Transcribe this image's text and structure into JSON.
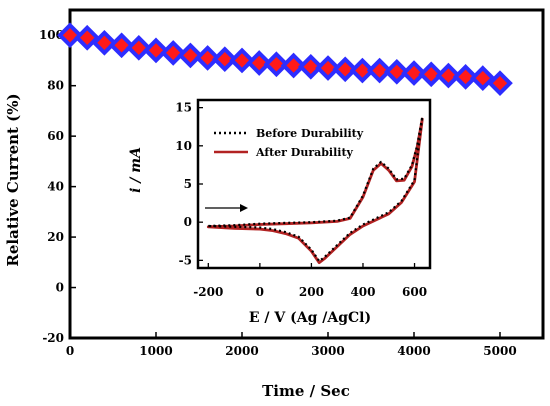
{
  "chart_data": [
    {
      "type": "scatter",
      "title": "",
      "xlabel": "Time / Sec",
      "ylabel": "Relative Current (%)",
      "xlim": [
        0,
        5500
      ],
      "ylim": [
        -20,
        110
      ],
      "xticks": [
        "0",
        "1000",
        "2000",
        "3000",
        "4000",
        "5000"
      ],
      "yticks": [
        "-20",
        "0",
        "20",
        "40",
        "60",
        "80",
        "100"
      ],
      "marker": "diamond",
      "marker_fill": "#ff1a1a",
      "marker_edge": "#2d2dff",
      "series": [
        {
          "x": [
            0,
            200,
            400,
            600,
            800,
            1000,
            1200,
            1400,
            1600,
            1800,
            2000,
            2200,
            2400,
            2600,
            2800,
            3000,
            3200,
            3400,
            3600,
            3800,
            4000,
            4200,
            4400,
            4600,
            4800,
            5000
          ],
          "y": [
            100,
            99,
            97,
            96,
            95,
            94,
            93,
            92,
            91,
            90.5,
            90,
            89,
            88.5,
            88,
            87.5,
            87,
            86.5,
            86,
            86,
            85.5,
            85,
            84.5,
            84,
            83.5,
            83,
            81
          ]
        }
      ]
    },
    {
      "type": "line",
      "title": "",
      "xlabel": "E / V (Ag /AgCl)",
      "ylabel": "i / mA",
      "xlim": [
        -240,
        660
      ],
      "ylim": [
        -6,
        16
      ],
      "xticks": [
        "-200",
        "0",
        "200",
        "400",
        "600"
      ],
      "yticks": [
        "-5",
        "0",
        "5",
        "10",
        "15"
      ],
      "legend_position": "top-left",
      "series": [
        {
          "name": "Before Durability",
          "style": "dotted",
          "color": "#000000",
          "x": [
            -200,
            -100,
            0,
            100,
            200,
            300,
            350,
            400,
            440,
            470,
            500,
            530,
            560,
            590,
            610,
            630,
            630,
            600,
            550,
            500,
            400,
            350,
            300,
            250,
            230,
            200,
            150,
            100,
            50,
            0,
            -100,
            -200
          ],
          "y": [
            -0.5,
            -0.4,
            -0.2,
            -0.1,
            0,
            0.2,
            0.6,
            3.5,
            7.0,
            7.9,
            7.0,
            5.6,
            5.7,
            7.5,
            10.0,
            13.8,
            13.8,
            5.5,
            2.8,
            1.3,
            -0.3,
            -1.4,
            -3.0,
            -4.6,
            -5.1,
            -3.6,
            -1.9,
            -1.3,
            -0.9,
            -0.7,
            -0.6,
            -0.5
          ]
        },
        {
          "name": "After Durability",
          "style": "solid",
          "color": "#b22222",
          "x": [
            -200,
            -100,
            0,
            100,
            200,
            300,
            350,
            400,
            440,
            470,
            500,
            530,
            560,
            590,
            610,
            630,
            630,
            600,
            550,
            500,
            400,
            350,
            300,
            250,
            230,
            200,
            150,
            100,
            50,
            0,
            -100,
            -200
          ],
          "y": [
            -0.6,
            -0.5,
            -0.3,
            -0.2,
            -0.1,
            0.1,
            0.5,
            3.3,
            6.8,
            7.7,
            6.8,
            5.4,
            5.5,
            7.3,
            9.8,
            13.5,
            13.5,
            5.3,
            2.6,
            1.1,
            -0.5,
            -1.6,
            -3.2,
            -4.8,
            -5.3,
            -3.8,
            -2.1,
            -1.5,
            -1.1,
            -0.9,
            -0.8,
            -0.6
          ]
        }
      ],
      "annotation": "arrow pointing right (scan direction)"
    }
  ]
}
